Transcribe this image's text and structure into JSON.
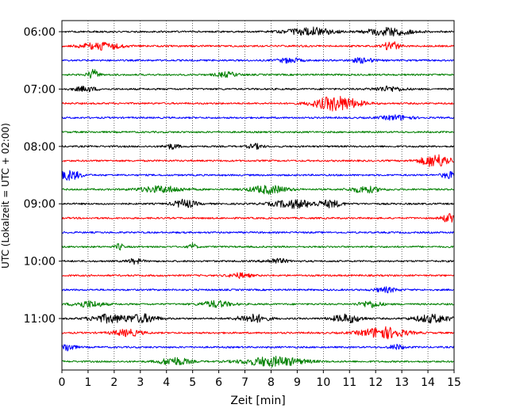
{
  "chart_data": {
    "type": "line",
    "subtype": "helicorder-seismogram",
    "xlabel": "Zeit  [min]",
    "ylabel": "UTC (Lokalzeit = UTC + 02:00)",
    "xlim": [
      0,
      15
    ],
    "x_ticks": [
      0,
      1,
      2,
      3,
      4,
      5,
      6,
      7,
      8,
      9,
      10,
      11,
      12,
      13,
      14,
      15
    ],
    "x_tick_labels": [
      "0",
      "1",
      "2",
      "3",
      "4",
      "5",
      "6",
      "7",
      "8",
      "9",
      "10",
      "11",
      "12",
      "13",
      "14",
      "15"
    ],
    "y_tick_labels": [
      "06:00",
      "07:00",
      "08:00",
      "09:00",
      "10:00",
      "11:00"
    ],
    "y_tick_trace_index": [
      0,
      4,
      8,
      12,
      16,
      20
    ],
    "grid": {
      "x": true,
      "style": "dotted",
      "y": false
    },
    "colors": [
      "#000000",
      "#ff0000",
      "#0000ff",
      "#008000"
    ],
    "traces": [
      {
        "start": "06:00",
        "color": "#000000",
        "bursts": [
          [
            9.5,
            0.6,
            5
          ],
          [
            12.5,
            0.6,
            5
          ]
        ]
      },
      {
        "start": "06:15",
        "color": "#ff0000",
        "bursts": [
          [
            1.5,
            0.5,
            5
          ],
          [
            12.6,
            0.2,
            6
          ]
        ]
      },
      {
        "start": "06:30",
        "color": "#0000ff",
        "bursts": [
          [
            8.7,
            0.3,
            3
          ],
          [
            11.5,
            0.3,
            3
          ]
        ]
      },
      {
        "start": "06:45",
        "color": "#008000",
        "bursts": [
          [
            1.2,
            0.15,
            6
          ],
          [
            6.3,
            0.3,
            3
          ]
        ]
      },
      {
        "start": "07:00",
        "color": "#000000",
        "bursts": [
          [
            0.9,
            0.3,
            3
          ],
          [
            12.5,
            0.4,
            3
          ]
        ]
      },
      {
        "start": "07:15",
        "color": "#ff0000",
        "bursts": [
          [
            10.5,
            0.6,
            9
          ]
        ]
      },
      {
        "start": "07:30",
        "color": "#0000ff",
        "bursts": [
          [
            12.8,
            0.4,
            3
          ]
        ]
      },
      {
        "start": "07:45",
        "color": "#008000",
        "bursts": []
      },
      {
        "start": "08:00",
        "color": "#000000",
        "bursts": [
          [
            4.2,
            0.2,
            3
          ],
          [
            7.4,
            0.2,
            3
          ]
        ]
      },
      {
        "start": "08:15",
        "color": "#ff0000",
        "bursts": [
          [
            14.3,
            0.4,
            8
          ]
        ]
      },
      {
        "start": "08:30",
        "color": "#0000ff",
        "bursts": [
          [
            0.3,
            0.3,
            6
          ],
          [
            14.8,
            0.2,
            4
          ]
        ]
      },
      {
        "start": "08:45",
        "color": "#008000",
        "bursts": [
          [
            3.8,
            0.6,
            4
          ],
          [
            7.9,
            0.5,
            5
          ],
          [
            11.6,
            0.4,
            4
          ]
        ]
      },
      {
        "start": "09:00",
        "color": "#000000",
        "bursts": [
          [
            4.7,
            0.3,
            5
          ],
          [
            8.9,
            0.6,
            5
          ],
          [
            10.3,
            0.3,
            4
          ]
        ]
      },
      {
        "start": "09:15",
        "color": "#ff0000",
        "bursts": [
          [
            14.8,
            0.2,
            5
          ]
        ]
      },
      {
        "start": "09:30",
        "color": "#0000ff",
        "bursts": []
      },
      {
        "start": "09:45",
        "color": "#008000",
        "bursts": [
          [
            2.2,
            0.1,
            4
          ],
          [
            5.0,
            0.1,
            4
          ]
        ]
      },
      {
        "start": "10:00",
        "color": "#000000",
        "bursts": [
          [
            2.8,
            0.2,
            3
          ],
          [
            8.2,
            0.3,
            3
          ]
        ]
      },
      {
        "start": "10:15",
        "color": "#ff0000",
        "bursts": [
          [
            6.8,
            0.3,
            3
          ]
        ]
      },
      {
        "start": "10:30",
        "color": "#0000ff",
        "bursts": [
          [
            12.4,
            0.3,
            3
          ]
        ]
      },
      {
        "start": "10:45",
        "color": "#008000",
        "bursts": [
          [
            1.0,
            0.4,
            4
          ],
          [
            5.9,
            0.4,
            4
          ],
          [
            11.8,
            0.3,
            4
          ]
        ]
      },
      {
        "start": "11:00",
        "color": "#000000",
        "bursts": [
          [
            1.8,
            0.5,
            5
          ],
          [
            3.1,
            0.4,
            5
          ],
          [
            7.3,
            0.4,
            5
          ],
          [
            10.9,
            0.4,
            5
          ],
          [
            14.2,
            0.5,
            5
          ]
        ]
      },
      {
        "start": "11:15",
        "color": "#ff0000",
        "bursts": [
          [
            2.5,
            0.4,
            4
          ],
          [
            12.3,
            0.6,
            7
          ]
        ]
      },
      {
        "start": "11:30",
        "color": "#0000ff",
        "bursts": [
          [
            0.2,
            0.2,
            5
          ],
          [
            12.8,
            0.2,
            3
          ]
        ]
      },
      {
        "start": "11:45",
        "color": "#008000",
        "bursts": [
          [
            4.3,
            0.4,
            5
          ],
          [
            8.1,
            0.8,
            6
          ]
        ]
      }
    ]
  }
}
